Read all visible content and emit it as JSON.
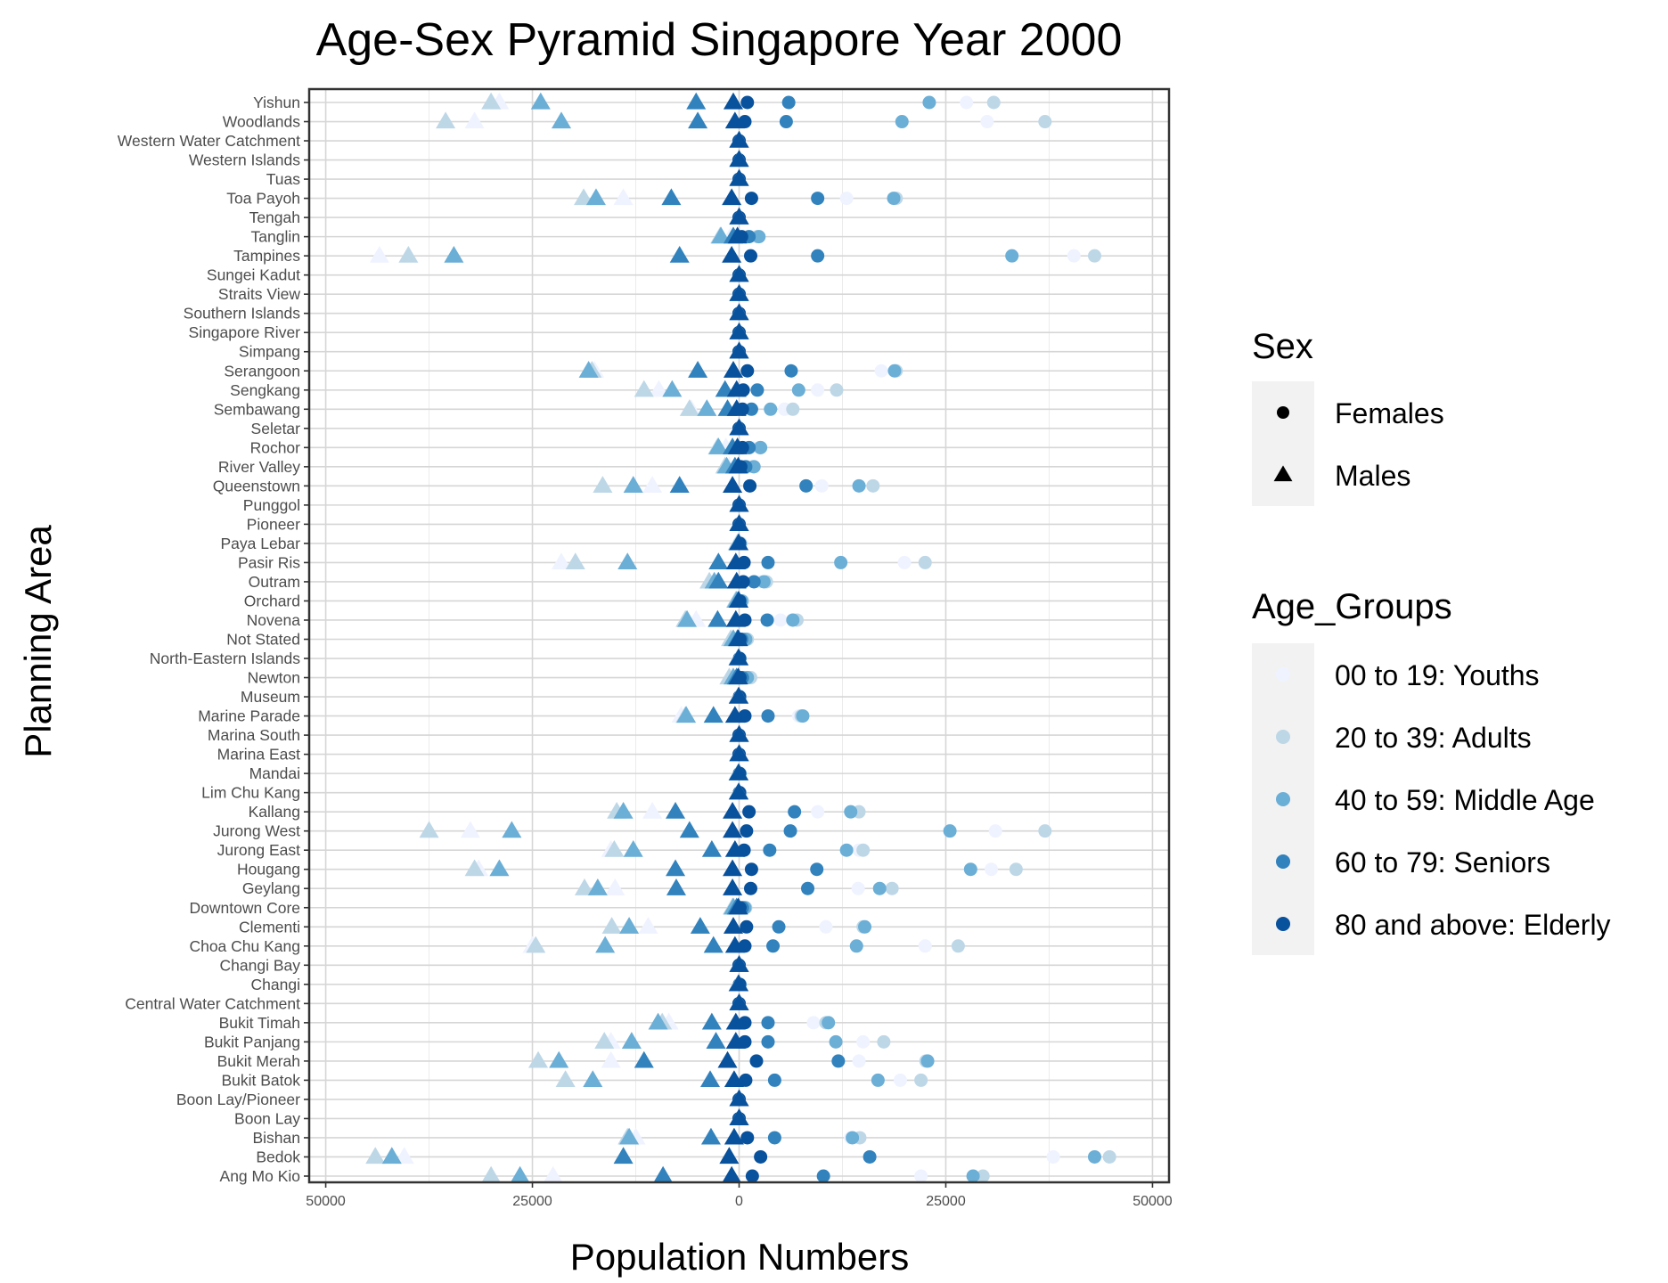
{
  "chart_data": {
    "type": "scatter",
    "title": "Age-Sex Pyramid Singapore Year 2000",
    "xlabel": "Population Numbers",
    "ylabel": "Planning Area",
    "xlim": [
      -52000,
      52000
    ],
    "x_ticks": [
      -50000,
      -25000,
      0,
      25000,
      50000
    ],
    "x_tick_labels": [
      "50000",
      "25000",
      "0",
      "25000",
      "50000"
    ],
    "grid": true,
    "legend_position": "right",
    "legend_sex": {
      "title": "Sex",
      "items": [
        {
          "label": "Females",
          "shape": "circle"
        },
        {
          "label": "Males",
          "shape": "triangle"
        }
      ]
    },
    "legend_age": {
      "title": "Age_Groups",
      "items": [
        {
          "label": "00 to 19: Youths",
          "color": "#eff3ff"
        },
        {
          "label": "20 to 39: Adults",
          "color": "#bdd7e7"
        },
        {
          "label": "40 to 59: Middle Age",
          "color": "#6baed6"
        },
        {
          "label": "60 to 79: Seniors",
          "color": "#3182bd"
        },
        {
          "label": "80 and above: Elderly",
          "color": "#08519c"
        }
      ]
    },
    "note": "Male values plotted as negative x; female values positive x.",
    "categories": [
      "Yishun",
      "Woodlands",
      "Western Water Catchment",
      "Western Islands",
      "Tuas",
      "Toa Payoh",
      "Tengah",
      "Tanglin",
      "Tampines",
      "Sungei Kadut",
      "Straits View",
      "Southern Islands",
      "Singapore River",
      "Simpang",
      "Serangoon",
      "Sengkang",
      "Sembawang",
      "Seletar",
      "Rochor",
      "River Valley",
      "Queenstown",
      "Punggol",
      "Pioneer",
      "Paya Lebar",
      "Pasir Ris",
      "Outram",
      "Orchard",
      "Novena",
      "Not Stated",
      "North-Eastern Islands",
      "Newton",
      "Museum",
      "Marine Parade",
      "Marina South",
      "Marina East",
      "Mandai",
      "Lim Chu Kang",
      "Kallang",
      "Jurong West",
      "Jurong East",
      "Hougang",
      "Geylang",
      "Downtown Core",
      "Clementi",
      "Choa Chu Kang",
      "Changi Bay",
      "Changi",
      "Central Water Catchment",
      "Bukit Timah",
      "Bukit Panjang",
      "Bukit Merah",
      "Bukit Batok",
      "Boon Lay/Pioneer",
      "Boon Lay",
      "Bishan",
      "Bedok",
      "Ang Mo Kio"
    ],
    "series": [
      {
        "name": "Females",
        "group": "00 to 19: Youths",
        "values": [
          27500,
          30000,
          0,
          0,
          0,
          13000,
          0,
          1000,
          40500,
          0,
          0,
          0,
          0,
          0,
          17200,
          9500,
          5500,
          0,
          1500,
          1100,
          10000,
          0,
          0,
          100,
          20000,
          2500,
          200,
          5000,
          700,
          100,
          900,
          50,
          7200,
          0,
          0,
          100,
          50,
          9500,
          31000,
          14500,
          30500,
          14400,
          600,
          10500,
          22500,
          0,
          100,
          0,
          9000,
          15000,
          14500,
          19500,
          0,
          0,
          13500,
          38000,
          22000
        ]
      },
      {
        "name": "Females",
        "group": "20 to 39: Adults",
        "values": [
          30800,
          37000,
          0,
          0,
          0,
          19000,
          0,
          2200,
          43000,
          0,
          0,
          0,
          0,
          0,
          19000,
          11800,
          6500,
          0,
          2500,
          1700,
          16200,
          0,
          0,
          200,
          22500,
          3300,
          400,
          7000,
          1000,
          100,
          1400,
          100,
          7500,
          0,
          0,
          100,
          100,
          14500,
          37000,
          15000,
          33500,
          18500,
          800,
          15000,
          26500,
          0,
          100,
          0,
          10500,
          17500,
          22600,
          22000,
          0,
          0,
          14600,
          44800,
          29500
        ]
      },
      {
        "name": "Females",
        "group": "40 to 59: Middle Age",
        "values": [
          23000,
          19700,
          0,
          0,
          0,
          18700,
          0,
          2400,
          33000,
          0,
          0,
          0,
          0,
          0,
          18800,
          7200,
          3800,
          0,
          2600,
          1800,
          14500,
          0,
          0,
          100,
          12300,
          3000,
          300,
          6500,
          800,
          100,
          1000,
          50,
          7700,
          0,
          0,
          100,
          50,
          13500,
          25500,
          13000,
          28000,
          17000,
          700,
          15200,
          14200,
          0,
          100,
          0,
          10800,
          11700,
          22800,
          16800,
          0,
          0,
          13700,
          43000,
          28300
        ]
      },
      {
        "name": "Females",
        "group": "60 to 79: Seniors",
        "values": [
          6000,
          5700,
          0,
          0,
          0,
          9500,
          0,
          1200,
          9500,
          0,
          0,
          0,
          0,
          0,
          6300,
          2200,
          1500,
          0,
          1200,
          800,
          8100,
          0,
          0,
          50,
          3500,
          1800,
          100,
          3400,
          300,
          50,
          400,
          50,
          3500,
          0,
          0,
          50,
          50,
          6700,
          6200,
          3700,
          9400,
          8300,
          400,
          4800,
          4100,
          0,
          50,
          0,
          3500,
          3500,
          12000,
          4300,
          0,
          0,
          4300,
          15800,
          10200
        ]
      },
      {
        "name": "Females",
        "group": "80 and above: Elderly",
        "values": [
          1000,
          700,
          0,
          0,
          0,
          1500,
          0,
          300,
          1400,
          0,
          0,
          0,
          0,
          0,
          1000,
          500,
          400,
          0,
          400,
          200,
          1300,
          0,
          0,
          50,
          600,
          500,
          50,
          700,
          100,
          50,
          100,
          50,
          700,
          0,
          0,
          50,
          50,
          1200,
          900,
          600,
          1500,
          1400,
          100,
          900,
          700,
          0,
          50,
          0,
          700,
          700,
          2100,
          800,
          0,
          0,
          1000,
          2600,
          1600
        ]
      },
      {
        "name": "Males",
        "group": "00 to 19: Youths",
        "values": [
          -29000,
          -32000,
          0,
          0,
          0,
          -14000,
          0,
          -1000,
          -43500,
          0,
          0,
          0,
          0,
          0,
          -17500,
          -9700,
          -5800,
          0,
          -1600,
          -1200,
          -10500,
          0,
          0,
          -100,
          -21500,
          -2600,
          -200,
          -5200,
          -700,
          -100,
          -900,
          -50,
          -7000,
          0,
          0,
          -100,
          -50,
          -10500,
          -32500,
          -15500,
          -31500,
          -15000,
          -600,
          -11000,
          -25000,
          0,
          -100,
          0,
          -8500,
          -15500,
          -15500,
          -21000,
          0,
          0,
          -12500,
          -40500,
          -22500
        ]
      },
      {
        "name": "Males",
        "group": "20 to 39: Adults",
        "values": [
          -30000,
          -35500,
          0,
          0,
          0,
          -18800,
          0,
          -2300,
          -40000,
          0,
          0,
          0,
          0,
          0,
          -17800,
          -11500,
          -6000,
          0,
          -2600,
          -1700,
          -16500,
          0,
          0,
          -200,
          -19800,
          -3600,
          -400,
          -6500,
          -1000,
          -100,
          -1200,
          -100,
          -6500,
          0,
          0,
          -100,
          -100,
          -14800,
          -37500,
          -15100,
          -32000,
          -18700,
          -800,
          -15400,
          -24600,
          0,
          -100,
          0,
          -9300,
          -16300,
          -24300,
          -21000,
          0,
          0,
          -13500,
          -44000,
          -30000
        ]
      },
      {
        "name": "Males",
        "group": "40 to 59: Middle Age",
        "values": [
          -24000,
          -21500,
          0,
          0,
          0,
          -17300,
          0,
          -2200,
          -34500,
          0,
          0,
          0,
          0,
          0,
          -18200,
          -8100,
          -3900,
          0,
          -2500,
          -1500,
          -12800,
          0,
          0,
          -100,
          -13500,
          -3000,
          -300,
          -6300,
          -700,
          -100,
          -700,
          -50,
          -6400,
          0,
          0,
          -100,
          -50,
          -14000,
          -27500,
          -12800,
          -29000,
          -17100,
          -700,
          -13300,
          -16200,
          0,
          -100,
          0,
          -9800,
          -13000,
          -21800,
          -17700,
          0,
          0,
          -13300,
          -42000,
          -26500
        ]
      },
      {
        "name": "Males",
        "group": "60 to 79: Seniors",
        "values": [
          -5200,
          -5000,
          0,
          0,
          0,
          -8200,
          0,
          -700,
          -7200,
          0,
          0,
          0,
          0,
          0,
          -5000,
          -1700,
          -1400,
          0,
          -800,
          -500,
          -7200,
          0,
          0,
          -50,
          -2500,
          -2500,
          -100,
          -2600,
          -200,
          -50,
          -300,
          -50,
          -3100,
          0,
          0,
          -50,
          -50,
          -7700,
          -6000,
          -3300,
          -7700,
          -7600,
          -300,
          -4700,
          -3100,
          0,
          -50,
          0,
          -3300,
          -2800,
          -11500,
          -3500,
          0,
          0,
          -3400,
          -14000,
          -9200
        ]
      },
      {
        "name": "Males",
        "group": "80 and above: Elderly",
        "values": [
          -700,
          -500,
          0,
          0,
          0,
          -900,
          0,
          -200,
          -900,
          0,
          0,
          0,
          0,
          0,
          -700,
          -300,
          -300,
          0,
          -200,
          -100,
          -800,
          0,
          0,
          -50,
          -400,
          -300,
          -50,
          -400,
          -100,
          -50,
          -100,
          -50,
          -500,
          0,
          0,
          -50,
          -50,
          -800,
          -800,
          -500,
          -800,
          -800,
          -100,
          -700,
          -500,
          0,
          -50,
          0,
          -400,
          -400,
          -1400,
          -600,
          0,
          0,
          -600,
          -1200,
          -900
        ]
      }
    ]
  }
}
